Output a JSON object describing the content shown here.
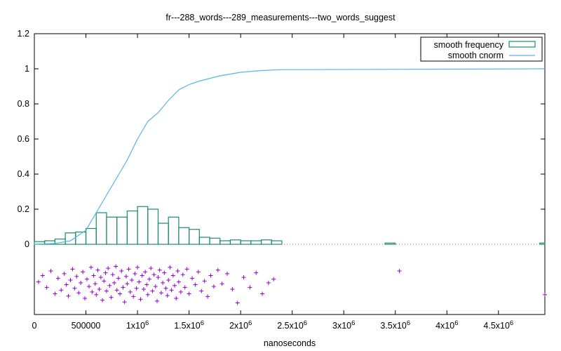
{
  "chart_data": {
    "type": "bar",
    "title": "fr---288_words---289_measurements---two_words_suggest",
    "xlabel": "nanoseconds",
    "ylabel": "",
    "xlim": [
      0,
      4950000
    ],
    "ylim": [
      -0.4,
      1.2
    ],
    "y_ticks": [
      0,
      0.2,
      0.4,
      0.6,
      0.8,
      1,
      1.2
    ],
    "y_tick_labels": [
      "0",
      "0.2",
      "0.4",
      "0.6",
      "0.8",
      "1",
      "1.2"
    ],
    "x_ticks": [
      0,
      500000,
      1000000,
      1500000,
      2000000,
      2500000,
      3000000,
      3500000,
      4000000,
      4500000
    ],
    "x_tick_labels": [
      {
        "mantissa": "0",
        "exp": ""
      },
      {
        "mantissa": "500000",
        "exp": ""
      },
      {
        "mantissa": "1x10",
        "exp": "6"
      },
      {
        "mantissa": "1.5x10",
        "exp": "6"
      },
      {
        "mantissa": "2x10",
        "exp": "6"
      },
      {
        "mantissa": "2.5x10",
        "exp": "6"
      },
      {
        "mantissa": "3x10",
        "exp": "6"
      },
      {
        "mantissa": "3.5x10",
        "exp": "6"
      },
      {
        "mantissa": "4x10",
        "exp": "6"
      },
      {
        "mantissa": "4.5x10",
        "exp": "6"
      }
    ],
    "legend_position": "top-right",
    "grid": false,
    "bin_width": 100000,
    "series": [
      {
        "name": "smooth frequency",
        "style": "histogram",
        "color": "#1a8a6a",
        "bins": [
          [
            0,
            0.015
          ],
          [
            100000,
            0.02
          ],
          [
            200000,
            0.03
          ],
          [
            300000,
            0.065
          ],
          [
            400000,
            0.07
          ],
          [
            500000,
            0.09
          ],
          [
            600000,
            0.18
          ],
          [
            700000,
            0.155
          ],
          [
            800000,
            0.155
          ],
          [
            900000,
            0.19
          ],
          [
            1000000,
            0.215
          ],
          [
            1100000,
            0.2
          ],
          [
            1200000,
            0.12
          ],
          [
            1300000,
            0.155
          ],
          [
            1400000,
            0.095
          ],
          [
            1500000,
            0.085
          ],
          [
            1600000,
            0.04
          ],
          [
            1700000,
            0.035
          ],
          [
            1800000,
            0.02
          ],
          [
            1900000,
            0.025
          ],
          [
            2000000,
            0.02
          ],
          [
            2100000,
            0.02
          ],
          [
            2200000,
            0.025
          ],
          [
            2300000,
            0.02
          ],
          [
            3400000,
            0.007
          ],
          [
            4900000,
            0.007
          ]
        ]
      },
      {
        "name": "smooth cnorm",
        "style": "line",
        "color": "#56b4e9",
        "points": [
          [
            0,
            0
          ],
          [
            200000,
            0.005
          ],
          [
            350000,
            0.02
          ],
          [
            500000,
            0.08
          ],
          [
            600000,
            0.18
          ],
          [
            700000,
            0.28
          ],
          [
            800000,
            0.38
          ],
          [
            900000,
            0.48
          ],
          [
            1000000,
            0.6
          ],
          [
            1100000,
            0.7
          ],
          [
            1200000,
            0.75
          ],
          [
            1300000,
            0.82
          ],
          [
            1400000,
            0.88
          ],
          [
            1500000,
            0.91
          ],
          [
            1600000,
            0.93
          ],
          [
            1800000,
            0.96
          ],
          [
            2000000,
            0.98
          ],
          [
            2200000,
            0.99
          ],
          [
            2400000,
            0.995
          ],
          [
            3400000,
            0.997
          ],
          [
            4950000,
            1.0
          ]
        ]
      },
      {
        "name": "",
        "style": "points",
        "color": "#9400d3",
        "points_x": [
          40000,
          80000,
          120000,
          160000,
          200000,
          230000,
          260000,
          290000,
          310000,
          330000,
          350000,
          370000,
          390000,
          410000,
          430000,
          450000,
          470000,
          490000,
          510000,
          530000,
          550000,
          560000,
          575000,
          590000,
          600000,
          615000,
          630000,
          645000,
          660000,
          675000,
          690000,
          700000,
          715000,
          730000,
          745000,
          760000,
          775000,
          790000,
          800000,
          815000,
          830000,
          845000,
          860000,
          875000,
          890000,
          900000,
          915000,
          930000,
          945000,
          960000,
          975000,
          990000,
          1000000,
          1015000,
          1030000,
          1045000,
          1060000,
          1075000,
          1090000,
          1100000,
          1115000,
          1130000,
          1145000,
          1160000,
          1175000,
          1190000,
          1200000,
          1215000,
          1230000,
          1245000,
          1260000,
          1275000,
          1290000,
          1300000,
          1315000,
          1330000,
          1345000,
          1360000,
          1375000,
          1390000,
          1400000,
          1420000,
          1440000,
          1460000,
          1480000,
          1500000,
          1530000,
          1560000,
          1590000,
          1620000,
          1650000,
          1680000,
          1710000,
          1740000,
          1780000,
          1820000,
          1870000,
          1920000,
          1970000,
          2030000,
          2090000,
          2150000,
          2210000,
          2270000,
          2320000,
          3540000,
          4950000
        ],
        "points_y_frac": [
          0.44,
          0.3,
          0.56,
          0.2,
          0.7,
          0.36,
          0.62,
          0.26,
          0.5,
          0.75,
          0.4,
          0.16,
          0.58,
          0.32,
          0.68,
          0.46,
          0.22,
          0.8,
          0.38,
          0.54,
          0.12,
          0.66,
          0.3,
          0.48,
          0.72,
          0.18,
          0.6,
          0.34,
          0.84,
          0.42,
          0.24,
          0.64,
          0.14,
          0.52,
          0.78,
          0.28,
          0.46,
          0.1,
          0.62,
          0.36,
          0.7,
          0.2,
          0.56,
          0.88,
          0.32,
          0.48,
          0.16,
          0.66,
          0.4,
          0.76,
          0.26,
          0.58,
          0.12,
          0.44,
          0.82,
          0.3,
          0.6,
          0.22,
          0.5,
          0.72,
          0.38,
          0.14,
          0.64,
          0.28,
          0.54,
          0.86,
          0.34,
          0.18,
          0.68,
          0.46,
          0.24,
          0.58,
          0.74,
          0.4,
          0.12,
          0.62,
          0.3,
          0.52,
          0.8,
          0.2,
          0.44,
          0.66,
          0.28,
          0.56,
          0.16,
          0.7,
          0.36,
          0.5,
          0.22,
          0.64,
          0.42,
          0.76,
          0.3,
          0.54,
          0.18,
          0.48,
          0.26,
          0.6,
          0.9,
          0.34,
          0.56,
          0.24,
          0.7,
          0.46,
          0.38,
          0.2,
          0.72
        ]
      }
    ]
  }
}
